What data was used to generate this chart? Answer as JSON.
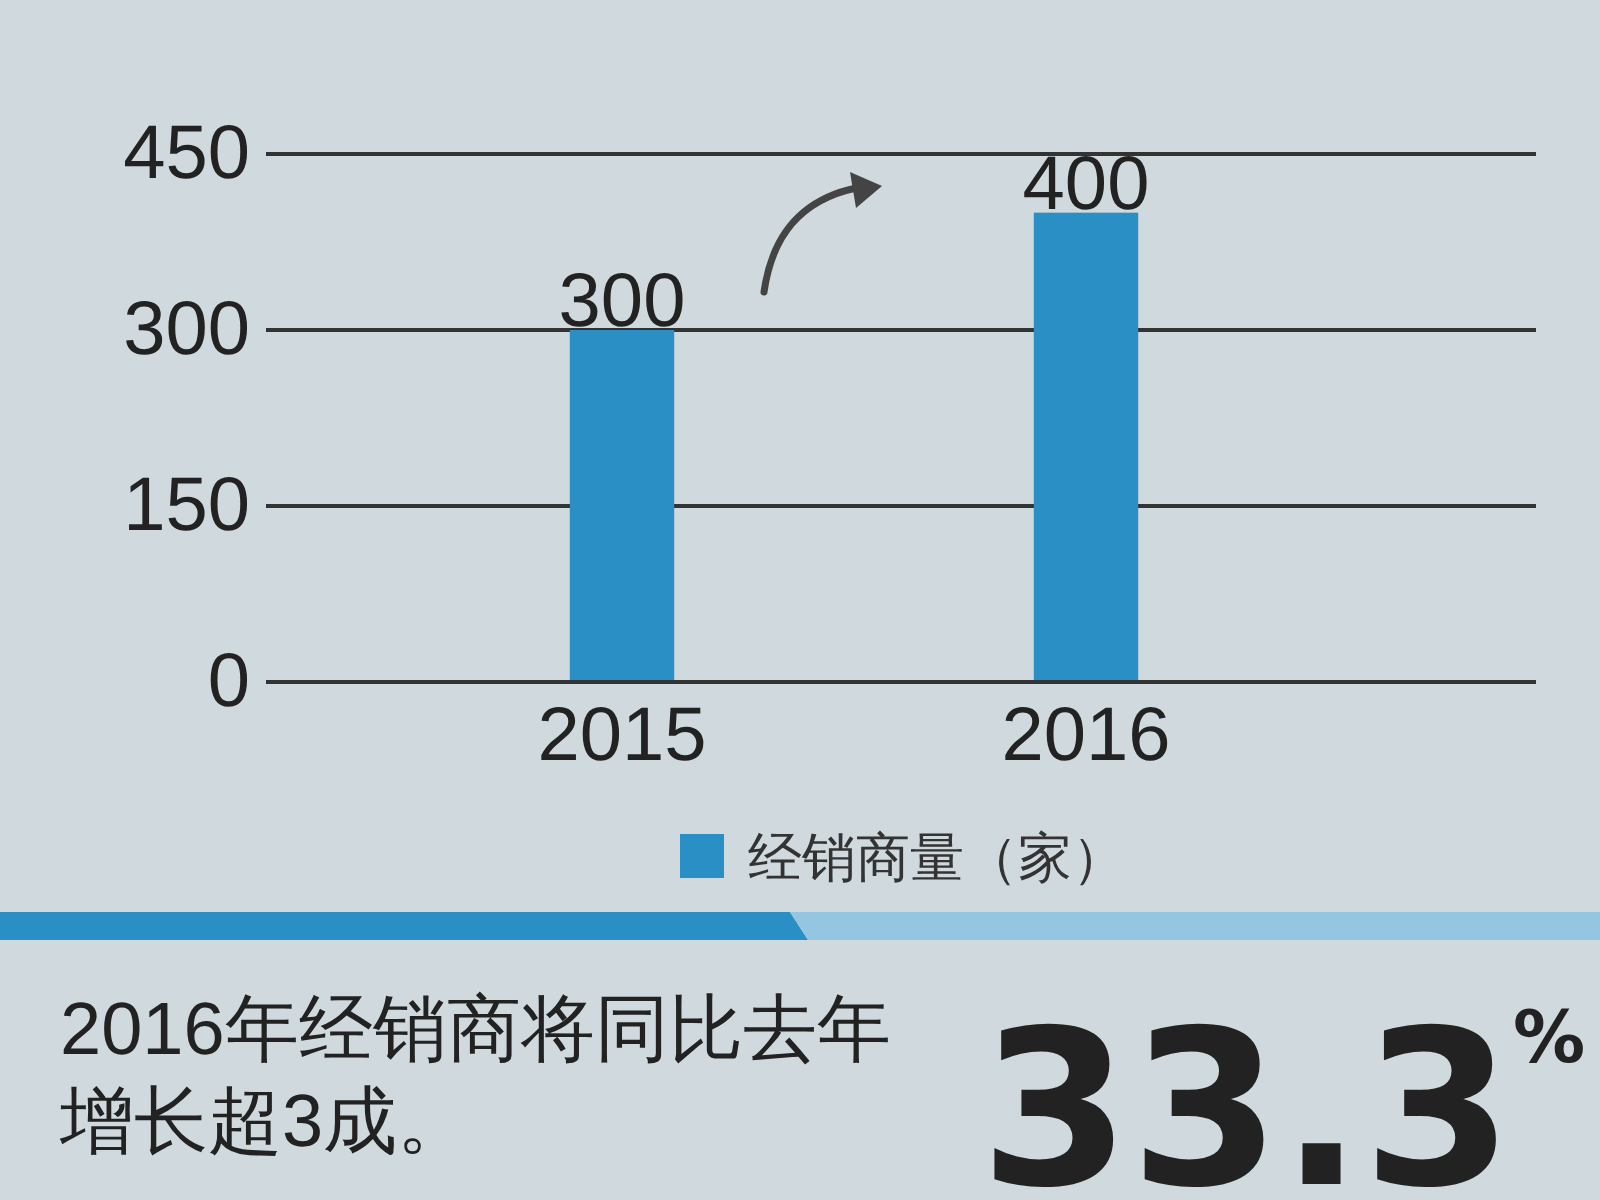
{
  "chart_data": {
    "type": "bar",
    "categories": [
      "2015",
      "2016"
    ],
    "series": [
      {
        "name": "经销商量（家）",
        "color": "#2a8fc4",
        "values": [
          300,
          400
        ]
      }
    ],
    "ylim": [
      0,
      450
    ],
    "yticks": [
      0,
      150,
      300,
      450
    ],
    "grid": "y",
    "data_labels": true,
    "legend": "bottom",
    "annotations": [
      "2016年经销商将同比去年增长超3成。",
      "33.3$^{%}$"
    ]
  }
}
